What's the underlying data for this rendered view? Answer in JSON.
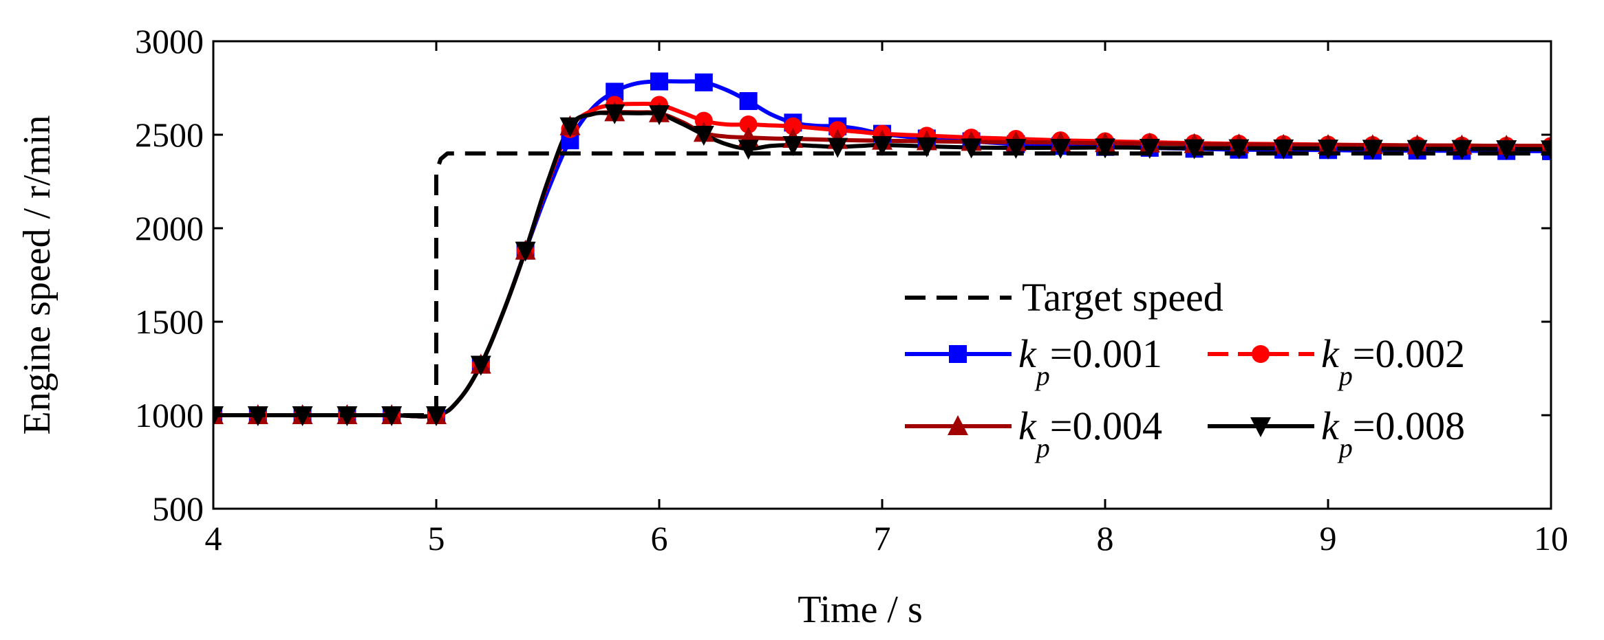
{
  "chart_data": {
    "type": "line",
    "xlabel": "Time / s",
    "ylabel": "Engine speed / r/min",
    "xlim": [
      4,
      10
    ],
    "ylim": [
      500,
      3000
    ],
    "xticks": [
      4,
      5,
      6,
      7,
      8,
      9,
      10
    ],
    "yticks": [
      500,
      1000,
      1500,
      2000,
      2500,
      3000
    ],
    "grid": false,
    "legend_position": "center-right",
    "target": {
      "name": "Target speed",
      "color": "#000000",
      "style": "dashed",
      "x": [
        4,
        5.0,
        5.0,
        5.0,
        5.02,
        5.05,
        10
      ],
      "y": [
        1000,
        1000,
        2150,
        2300,
        2370,
        2400,
        2400
      ]
    },
    "marker_x": [
      4,
      4.2,
      4.4,
      4.6,
      4.8,
      5.0,
      5.2,
      5.4,
      5.6,
      5.8,
      6.0,
      6.2,
      6.4,
      6.6,
      6.8,
      7.0,
      7.2,
      7.4,
      7.6,
      7.8,
      8.0,
      8.2,
      8.4,
      8.6,
      8.8,
      9.0,
      9.2,
      9.4,
      9.6,
      9.8,
      10.0
    ],
    "series": [
      {
        "name": "k_p=0.001",
        "kp_value": "=0.001",
        "color": "#0000ff",
        "marker": "square",
        "style": "solid",
        "x": [
          4,
          4.2,
          4.4,
          4.6,
          4.8,
          5.0,
          5.1,
          5.2,
          5.3,
          5.4,
          5.5,
          5.6,
          5.7,
          5.8,
          5.9,
          6.0,
          6.1,
          6.2,
          6.3,
          6.4,
          6.5,
          6.6,
          6.7,
          6.8,
          6.9,
          7.0,
          7.2,
          7.4,
          7.6,
          7.8,
          8.0,
          8.2,
          8.4,
          8.6,
          8.8,
          9.0,
          9.2,
          9.4,
          9.6,
          9.8,
          10.0
        ],
        "y": [
          1000,
          1000,
          1000,
          1000,
          1000,
          1000,
          1080,
          1270,
          1550,
          1880,
          2200,
          2470,
          2640,
          2730,
          2775,
          2785,
          2785,
          2780,
          2740,
          2680,
          2610,
          2565,
          2548,
          2545,
          2530,
          2505,
          2480,
          2465,
          2450,
          2440,
          2435,
          2430,
          2425,
          2420,
          2420,
          2418,
          2415,
          2415,
          2414,
          2413,
          2412
        ]
      },
      {
        "name": "k_p=0.002",
        "kp_value": "=0.002",
        "color": "#ff0000",
        "marker": "circle",
        "style": "solid",
        "x": [
          4,
          4.2,
          4.4,
          4.6,
          4.8,
          5.0,
          5.1,
          5.2,
          5.3,
          5.4,
          5.5,
          5.6,
          5.7,
          5.8,
          5.9,
          6.0,
          6.1,
          6.2,
          6.3,
          6.4,
          6.5,
          6.6,
          6.7,
          6.8,
          6.9,
          7.0,
          7.2,
          7.4,
          7.6,
          7.8,
          8.0,
          8.2,
          8.4,
          8.6,
          8.8,
          9.0,
          9.2,
          9.4,
          9.6,
          9.8,
          10.0
        ],
        "y": [
          1000,
          1000,
          1000,
          1000,
          1000,
          1000,
          1080,
          1270,
          1550,
          1880,
          2240,
          2530,
          2630,
          2660,
          2665,
          2660,
          2620,
          2575,
          2555,
          2555,
          2550,
          2545,
          2535,
          2525,
          2515,
          2505,
          2495,
          2485,
          2478,
          2470,
          2465,
          2460,
          2455,
          2452,
          2450,
          2447,
          2445,
          2443,
          2442,
          2441,
          2440
        ]
      },
      {
        "name": "k_p=0.004",
        "kp_value": "=0.004",
        "color": "#a00000",
        "marker": "triangle-up",
        "style": "solid",
        "x": [
          4,
          4.2,
          4.4,
          4.6,
          4.8,
          5.0,
          5.1,
          5.2,
          5.3,
          5.4,
          5.5,
          5.6,
          5.7,
          5.8,
          5.9,
          6.0,
          6.1,
          6.2,
          6.3,
          6.4,
          6.5,
          6.6,
          6.7,
          6.8,
          6.9,
          7.0,
          7.2,
          7.4,
          7.6,
          7.8,
          8.0,
          8.2,
          8.4,
          8.6,
          8.8,
          9.0,
          9.2,
          9.4,
          9.6,
          9.8,
          10.0
        ],
        "y": [
          1000,
          1000,
          1000,
          1000,
          1000,
          1000,
          1080,
          1270,
          1550,
          1880,
          2250,
          2545,
          2610,
          2620,
          2620,
          2615,
          2570,
          2510,
          2490,
          2485,
          2480,
          2478,
          2475,
          2472,
          2470,
          2468,
          2465,
          2462,
          2460,
          2458,
          2455,
          2453,
          2450,
          2448,
          2446,
          2445,
          2444,
          2443,
          2442,
          2441,
          2440
        ]
      },
      {
        "name": "k_p=0.008",
        "kp_value": "=0.008",
        "color": "#000000",
        "marker": "triangle-down",
        "style": "solid",
        "x": [
          4,
          4.2,
          4.4,
          4.6,
          4.8,
          5.0,
          5.1,
          5.2,
          5.3,
          5.4,
          5.5,
          5.6,
          5.7,
          5.8,
          5.9,
          6.0,
          6.1,
          6.2,
          6.3,
          6.4,
          6.5,
          6.6,
          6.7,
          6.8,
          6.9,
          7.0,
          7.2,
          7.4,
          7.6,
          7.8,
          8.0,
          8.2,
          8.4,
          8.6,
          8.8,
          9.0,
          9.2,
          9.4,
          9.6,
          9.8,
          10.0
        ],
        "y": [
          1000,
          1000,
          1000,
          1000,
          1000,
          1000,
          1080,
          1270,
          1550,
          1880,
          2250,
          2545,
          2610,
          2615,
          2615,
          2610,
          2560,
          2500,
          2450,
          2425,
          2440,
          2445,
          2440,
          2435,
          2440,
          2445,
          2438,
          2432,
          2430,
          2430,
          2432,
          2430,
          2428,
          2428,
          2427,
          2426,
          2425,
          2424,
          2424,
          2423,
          2422
        ]
      }
    ]
  },
  "legend": {
    "target_label": "Target speed",
    "kp_symbol": "k",
    "kp_subscript": "p"
  }
}
